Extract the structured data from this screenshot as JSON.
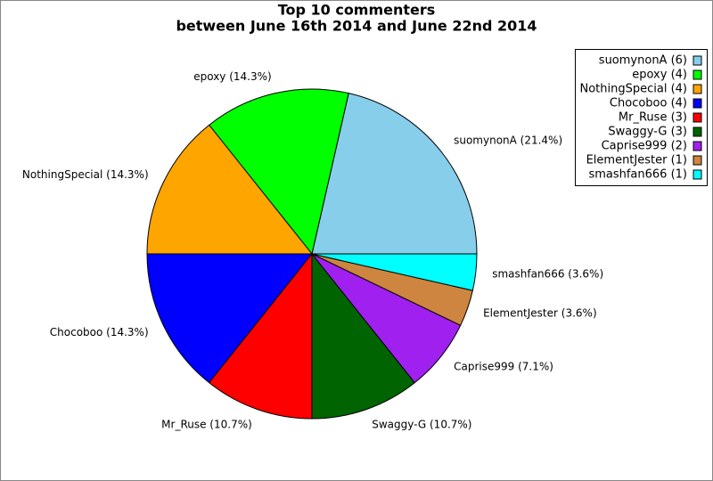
{
  "chart_data": {
    "type": "pie",
    "title": "Top 10 commenters",
    "subtitle": "between June 16th 2014 and June 22nd 2014",
    "categories": [
      "suomynonA",
      "epoxy",
      "NothingSpecial",
      "Chocoboo",
      "Mr_Ruse",
      "Swaggy-G",
      "Caprise999",
      "ElementJester",
      "smashfan666"
    ],
    "values": [
      6,
      4,
      4,
      4,
      3,
      3,
      2,
      1,
      1
    ],
    "value_labels": [
      "suomynonA (21.4%)",
      "epoxy (14.3%)",
      "NothingSpecial (14.3%)",
      "Chocoboo (14.3%)",
      "Mr_Ruse (10.7%)",
      "Swaggy-G (10.7%)",
      "Caprise999 (7.1%)",
      "ElementJester (3.6%)",
      "smashfan666 (3.6%)"
    ],
    "legend_labels": [
      "suomynonA (6)",
      "epoxy (4)",
      "NothingSpecial (4)",
      "Chocoboo (4)",
      "Mr_Ruse (3)",
      "Swaggy-G (3)",
      "Caprise999 (2)",
      "ElementJester (1)",
      "smashfan666 (1)"
    ],
    "colors": [
      "#87ceeb",
      "#00ff00",
      "#ffa500",
      "#0000ff",
      "#ff0000",
      "#006400",
      "#a020f0",
      "#cd853f",
      "#00ffff"
    ],
    "legend": "upper right"
  }
}
